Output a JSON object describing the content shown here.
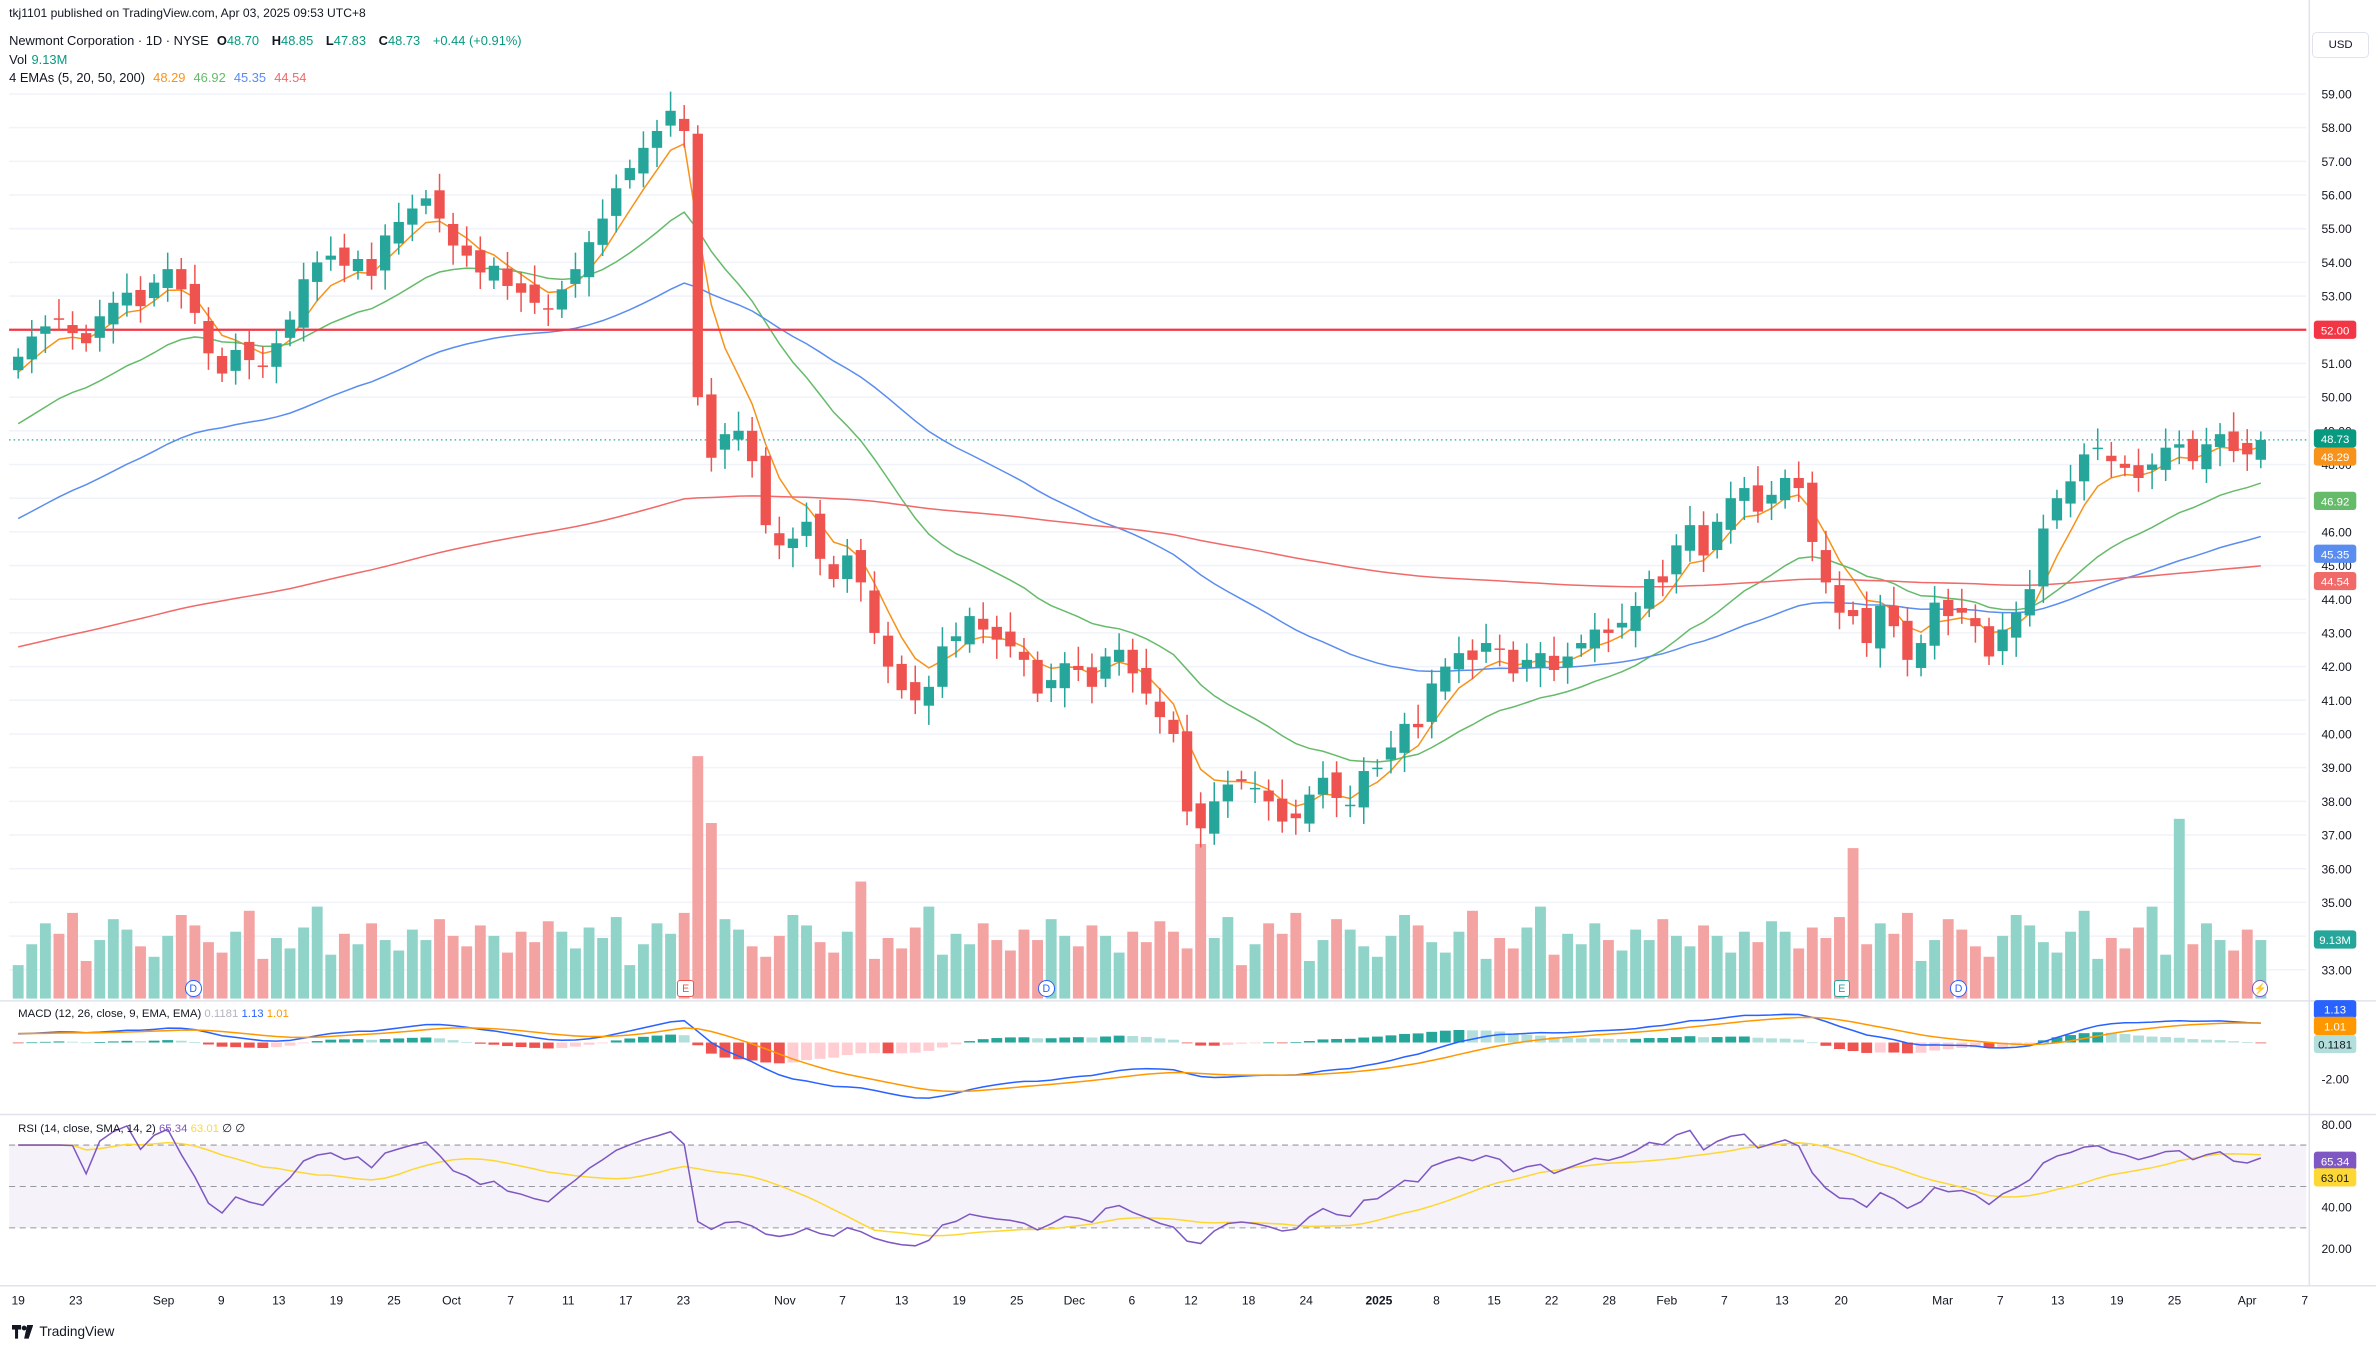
{
  "publisher": "tkj1101 published on TradingView.com, Apr 03, 2025 09:53 UTC+8",
  "symbol": {
    "name": "Newmont Corporation · 1D · NYSE",
    "o_label": "O",
    "o": "48.70",
    "h_label": "H",
    "h": "48.85",
    "l_label": "L",
    "l": "47.83",
    "c_label": "C",
    "c": "48.73",
    "change": "+0.44 (+0.91%)"
  },
  "vol_label": "Vol",
  "vol_value": "9.13M",
  "ema_label": "4 EMAs (5, 20, 50, 200)",
  "ema_values": [
    "48.29",
    "46.92",
    "45.35",
    "44.54"
  ],
  "macd_label": "MACD (12, 26, close, 9, EMA, EMA)",
  "macd_values": [
    "0.1181",
    "1.13",
    "1.01"
  ],
  "rsi_label": "RSI (14, close, SMA, 14, 2)",
  "rsi_values": [
    "65.34",
    "63.01",
    "∅",
    "∅"
  ],
  "currency": "USD",
  "footer": "TradingView",
  "event_markers": [
    {
      "label": "D",
      "type": "dividend"
    },
    {
      "label": "E",
      "type": "earnings"
    },
    {
      "label": "D",
      "type": "dividend"
    },
    {
      "label": "E",
      "type": "earnings"
    },
    {
      "label": "D",
      "type": "dividend"
    }
  ],
  "colors": {
    "up": "#26a69a",
    "down": "#ef5350",
    "ema5": "#f7931a",
    "ema20": "#66bb6a",
    "ema50": "#5b8def",
    "ema200": "#f06a6a",
    "hline": "#f23645",
    "rsi": "#7e57c2",
    "rsi_ma": "#fdd835",
    "macd": "#2962ff",
    "signal": "#ff9800"
  },
  "chart_data": {
    "type": "candlestick",
    "title": "Newmont Corporation · 1D · NYSE",
    "y_ticks": [
      "59.00",
      "58.00",
      "57.00",
      "56.00",
      "55.00",
      "54.00",
      "53.00",
      "51.00",
      "50.00",
      "49.00",
      "48.00",
      "46.00",
      "45.00",
      "44.00",
      "43.00",
      "42.00",
      "41.00",
      "40.00",
      "39.00",
      "38.00",
      "37.00",
      "36.00",
      "35.00",
      "33.00"
    ],
    "y_range": [
      32.5,
      59.5
    ],
    "x_ticks": [
      "19",
      "23",
      "Sep",
      "9",
      "13",
      "19",
      "25",
      "Oct",
      "7",
      "11",
      "17",
      "23",
      "Nov",
      "7",
      "13",
      "19",
      "25",
      "Dec",
      "6",
      "12",
      "18",
      "24",
      "2025",
      "8",
      "15",
      "22",
      "28",
      "Feb",
      "7",
      "13",
      "20",
      "Mar",
      "7",
      "13",
      "19",
      "25",
      "Apr",
      "7"
    ],
    "horizontal_line": {
      "value": 52.0,
      "label": "52.00"
    },
    "last_price": {
      "value": 48.73,
      "label": "48.73"
    },
    "ema": [
      {
        "name": "EMA 5",
        "last": 48.29
      },
      {
        "name": "EMA 20",
        "last": 46.92
      },
      {
        "name": "EMA 50",
        "last": 45.35
      },
      {
        "name": "EMA 200",
        "last": 44.54
      }
    ],
    "closes": [
      51.2,
      51.8,
      52.1,
      52.3,
      51.9,
      51.6,
      52.4,
      52.8,
      53.1,
      52.7,
      53.4,
      53.8,
      53.2,
      52.5,
      51.3,
      50.7,
      51.4,
      51.1,
      50.9,
      51.6,
      52.3,
      53.5,
      54.0,
      54.2,
      53.9,
      54.1,
      53.6,
      54.8,
      55.2,
      55.6,
      55.9,
      55.3,
      54.5,
      54.2,
      53.7,
      53.9,
      53.3,
      53.1,
      52.8,
      52.6,
      53.2,
      53.8,
      54.6,
      55.3,
      56.2,
      56.8,
      57.4,
      57.9,
      58.5,
      57.9,
      50.0,
      48.2,
      48.9,
      49.0,
      48.1,
      46.2,
      45.6,
      45.8,
      46.3,
      45.2,
      44.6,
      45.3,
      44.5,
      43.0,
      42.0,
      41.3,
      41.0,
      41.4,
      42.6,
      42.9,
      43.5,
      43.1,
      42.8,
      42.6,
      42.2,
      41.2,
      41.6,
      42.1,
      41.9,
      41.4,
      42.3,
      42.5,
      41.8,
      41.2,
      40.5,
      40.0,
      37.7,
      37.2,
      38.0,
      38.5,
      38.6,
      38.4,
      38.0,
      37.4,
      37.5,
      38.2,
      38.7,
      38.1,
      37.9,
      38.9,
      39.0,
      39.6,
      40.3,
      40.2,
      41.5,
      42.0,
      42.4,
      42.2,
      42.7,
      42.5,
      41.8,
      42.2,
      42.4,
      41.9,
      42.3,
      42.7,
      43.1,
      43.0,
      43.3,
      43.8,
      44.6,
      44.5,
      45.6,
      46.2,
      45.3,
      46.3,
      47.0,
      47.3,
      46.6,
      47.1,
      47.6,
      47.3,
      45.7,
      44.5,
      43.6,
      43.5,
      42.7,
      43.8,
      43.2,
      42.2,
      42.7,
      43.9,
      43.5,
      43.6,
      43.2,
      42.3,
      43.1,
      43.6,
      44.3,
      46.1,
      47.0,
      47.5,
      48.3,
      48.5,
      48.1,
      47.9,
      47.6,
      48.0,
      48.5,
      48.6,
      48.1,
      48.6,
      48.9,
      48.4,
      48.3,
      48.73
    ],
    "volume_unit": "M",
    "volume_last": 9.13,
    "macd_last": 1.13,
    "signal_last": 1.01,
    "hist_last": 0.1181,
    "macd_ticks": [
      "-2.00"
    ],
    "rsi_last": 65.34,
    "rsi_ma_last": 63.01,
    "rsi_ticks": [
      "80.00",
      "60.00",
      "40.00",
      "20.00"
    ],
    "rsi_bands": [
      70,
      50,
      30
    ]
  }
}
